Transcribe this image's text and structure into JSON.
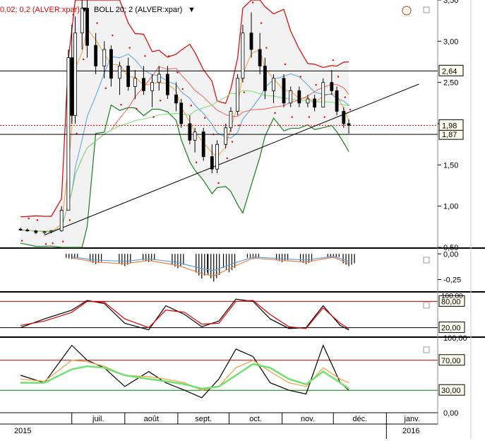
{
  "header": {
    "parabolic_sar_label": "0,02; 0,2 (ALVER:xpar)",
    "bollinger_label": "BOLL 20; 2 (ALVER:xpar)",
    "dropdown_icon": "triangle-down-icon",
    "clock_icon": "clock-icon",
    "window_icon": "window-icon"
  },
  "colors": {
    "price_up": "#ffffff",
    "price_down": "#000000",
    "boll_upper": "#e00000",
    "boll_lower": "#1a7d1a",
    "boll_fill": "#f2f2f2",
    "sar_dots": "#e00000",
    "ma_short": "#f0a040",
    "ma_mid": "#5aa0e0",
    "ma_long": "#f06060",
    "ma_xlong": "#70e070",
    "stoch_k": "#000000",
    "stoch_d": "#e00000",
    "rsi_line": "#000000",
    "rsi_ma": "#f0a040",
    "rsi_ma2": "#70e070",
    "level_line_high": "#c00000",
    "level_line_low": "#008000"
  },
  "x_axis": {
    "month_labels": [
      "juil.",
      "août",
      "sept.",
      "oct.",
      "nov.",
      "déc.",
      "janv."
    ],
    "year_labels": [
      "2015",
      "2016"
    ]
  },
  "chart_data": [
    {
      "type": "candlestick",
      "title": "",
      "ylim": [
        0.5,
        3.5
      ],
      "y_ticks": [
        "3,50",
        "3,00",
        "2,50",
        "2,00",
        "1,50",
        "1,00",
        "0,50"
      ],
      "horizontal_levels": [
        2.64,
        1.87
      ],
      "level_labels": [
        "2,64",
        "1,87"
      ],
      "last_price": 1.98,
      "last_price_label": "1,98",
      "trendline": {
        "from": [
          "2015-06-15",
          0.65
        ],
        "to": [
          "2016-01-20",
          2.48
        ]
      },
      "candles": [
        [
          "2015-06-01",
          0.72,
          0.74,
          0.7,
          0.71
        ],
        [
          "2015-06-05",
          0.71,
          0.73,
          0.69,
          0.7
        ],
        [
          "2015-06-10",
          0.7,
          0.71,
          0.66,
          0.68
        ],
        [
          "2015-06-15",
          0.68,
          0.7,
          0.66,
          0.69
        ],
        [
          "2015-06-19",
          0.69,
          0.71,
          0.67,
          0.7
        ],
        [
          "2015-06-25",
          0.7,
          1.0,
          0.69,
          0.95
        ],
        [
          "2015-06-29",
          0.95,
          2.9,
          0.95,
          2.8
        ],
        [
          "2015-07-01",
          2.8,
          3.2,
          2.0,
          2.1
        ],
        [
          "2015-07-03",
          2.1,
          3.3,
          2.0,
          3.1
        ],
        [
          "2015-07-07",
          3.1,
          3.6,
          2.9,
          3.4
        ],
        [
          "2015-07-10",
          3.4,
          3.55,
          2.8,
          2.95
        ],
        [
          "2015-07-15",
          2.95,
          3.1,
          2.6,
          2.7
        ],
        [
          "2015-07-20",
          2.7,
          3.0,
          2.55,
          2.9
        ],
        [
          "2015-07-24",
          2.9,
          2.95,
          2.45,
          2.55
        ],
        [
          "2015-07-29",
          2.55,
          2.75,
          2.35,
          2.7
        ],
        [
          "2015-08-03",
          2.7,
          2.8,
          2.4,
          2.45
        ],
        [
          "2015-08-07",
          2.45,
          2.65,
          2.3,
          2.55
        ],
        [
          "2015-08-12",
          2.55,
          2.7,
          2.35,
          2.4
        ],
        [
          "2015-08-17",
          2.4,
          2.6,
          2.2,
          2.5
        ],
        [
          "2015-08-21",
          2.5,
          2.7,
          2.4,
          2.6
        ],
        [
          "2015-08-26",
          2.6,
          2.7,
          2.3,
          2.35
        ],
        [
          "2015-08-31",
          2.35,
          2.5,
          2.15,
          2.25
        ],
        [
          "2015-09-03",
          2.25,
          2.3,
          1.95,
          2.0
        ],
        [
          "2015-09-08",
          2.0,
          2.1,
          1.75,
          1.8
        ],
        [
          "2015-09-11",
          1.8,
          1.95,
          1.65,
          1.9
        ],
        [
          "2015-09-16",
          1.9,
          1.95,
          1.55,
          1.6
        ],
        [
          "2015-09-21",
          1.6,
          1.75,
          1.4,
          1.45
        ],
        [
          "2015-09-24",
          1.45,
          1.8,
          1.4,
          1.75
        ],
        [
          "2015-09-29",
          1.75,
          2.0,
          1.7,
          1.95
        ],
        [
          "2015-10-02",
          1.95,
          2.2,
          1.9,
          2.15
        ],
        [
          "2015-10-06",
          2.15,
          2.6,
          2.1,
          2.55
        ],
        [
          "2015-10-09",
          2.55,
          3.2,
          2.5,
          3.1
        ],
        [
          "2015-10-14",
          3.1,
          3.35,
          2.8,
          2.9
        ],
        [
          "2015-10-19",
          2.9,
          3.1,
          2.6,
          2.7
        ],
        [
          "2015-10-22",
          2.7,
          2.8,
          2.3,
          2.4
        ],
        [
          "2015-10-27",
          2.4,
          2.6,
          2.25,
          2.55
        ],
        [
          "2015-11-02",
          2.55,
          2.6,
          2.2,
          2.25
        ],
        [
          "2015-11-06",
          2.25,
          2.45,
          2.2,
          2.4
        ],
        [
          "2015-11-11",
          2.4,
          2.45,
          2.2,
          2.25
        ],
        [
          "2015-11-16",
          2.25,
          2.35,
          2.2,
          2.3
        ],
        [
          "2015-11-20",
          2.3,
          2.35,
          2.15,
          2.2
        ],
        [
          "2015-11-25",
          2.2,
          2.55,
          2.2,
          2.5
        ],
        [
          "2015-11-30",
          2.5,
          2.65,
          2.35,
          2.4
        ],
        [
          "2015-12-03",
          2.4,
          2.45,
          2.1,
          2.15
        ],
        [
          "2015-12-07",
          2.15,
          2.2,
          1.95,
          2.0
        ],
        [
          "2015-12-10",
          2.0,
          2.05,
          1.88,
          1.98
        ]
      ]
    },
    {
      "type": "histogram",
      "title": "",
      "ylim": [
        -0.35,
        0.05
      ],
      "y_ticks": [
        "0,00",
        "-0,25"
      ],
      "x": [
        "2015-07-01",
        "2015-07-15",
        "2015-08-01",
        "2015-08-15",
        "2015-09-01",
        "2015-09-15",
        "2015-09-22",
        "2015-10-01",
        "2015-10-15",
        "2015-11-01",
        "2015-11-15",
        "2015-12-01",
        "2015-12-10"
      ],
      "values": [
        -0.05,
        -0.1,
        -0.12,
        -0.08,
        -0.14,
        -0.24,
        -0.27,
        -0.18,
        -0.05,
        -0.08,
        -0.1,
        -0.04,
        -0.12
      ]
    },
    {
      "type": "line",
      "title": "",
      "ylim": [
        0,
        100
      ],
      "y_ticks": [
        "100,00",
        "80,00",
        "20,00"
      ],
      "level_labels": [
        "80,00",
        "20,00"
      ],
      "levels": [
        80,
        20
      ],
      "x": [
        "2015-06-01",
        "2015-06-15",
        "2015-07-01",
        "2015-07-10",
        "2015-07-20",
        "2015-08-01",
        "2015-08-15",
        "2015-08-25",
        "2015-09-05",
        "2015-09-15",
        "2015-09-25",
        "2015-10-05",
        "2015-10-15",
        "2015-10-25",
        "2015-11-05",
        "2015-11-15",
        "2015-11-25",
        "2015-12-05",
        "2015-12-10"
      ],
      "series": [
        {
          "values": [
            20,
            40,
            60,
            82,
            75,
            30,
            15,
            70,
            50,
            22,
            35,
            85,
            80,
            40,
            18,
            20,
            70,
            25,
            15
          ]
        },
        {
          "values": [
            25,
            35,
            55,
            80,
            78,
            40,
            20,
            60,
            55,
            28,
            30,
            80,
            82,
            50,
            22,
            18,
            65,
            30,
            18
          ]
        }
      ]
    },
    {
      "type": "line",
      "title": "",
      "ylim": [
        0,
        100
      ],
      "y_ticks": [
        "100,00",
        "70,00",
        "30,00",
        "0,00"
      ],
      "level_labels": [
        "70,00",
        "30,00"
      ],
      "levels": [
        70,
        30
      ],
      "x": [
        "2015-06-01",
        "2015-06-15",
        "2015-07-01",
        "2015-07-10",
        "2015-07-20",
        "2015-08-01",
        "2015-08-15",
        "2015-08-25",
        "2015-09-05",
        "2015-09-15",
        "2015-09-25",
        "2015-10-05",
        "2015-10-15",
        "2015-10-25",
        "2015-11-05",
        "2015-11-15",
        "2015-11-25",
        "2015-12-05",
        "2015-12-10"
      ],
      "series": [
        {
          "values": [
            50,
            40,
            90,
            70,
            60,
            35,
            55,
            40,
            30,
            20,
            45,
            85,
            75,
            40,
            30,
            25,
            90,
            40,
            30
          ]
        },
        {
          "values": [
            45,
            42,
            70,
            68,
            62,
            50,
            48,
            45,
            40,
            30,
            35,
            60,
            70,
            55,
            40,
            35,
            60,
            45,
            40
          ]
        },
        {
          "values": [
            40,
            40,
            58,
            62,
            60,
            50,
            45,
            42,
            38,
            32,
            35,
            50,
            65,
            60,
            45,
            38,
            55,
            40,
            32
          ]
        }
      ]
    }
  ]
}
